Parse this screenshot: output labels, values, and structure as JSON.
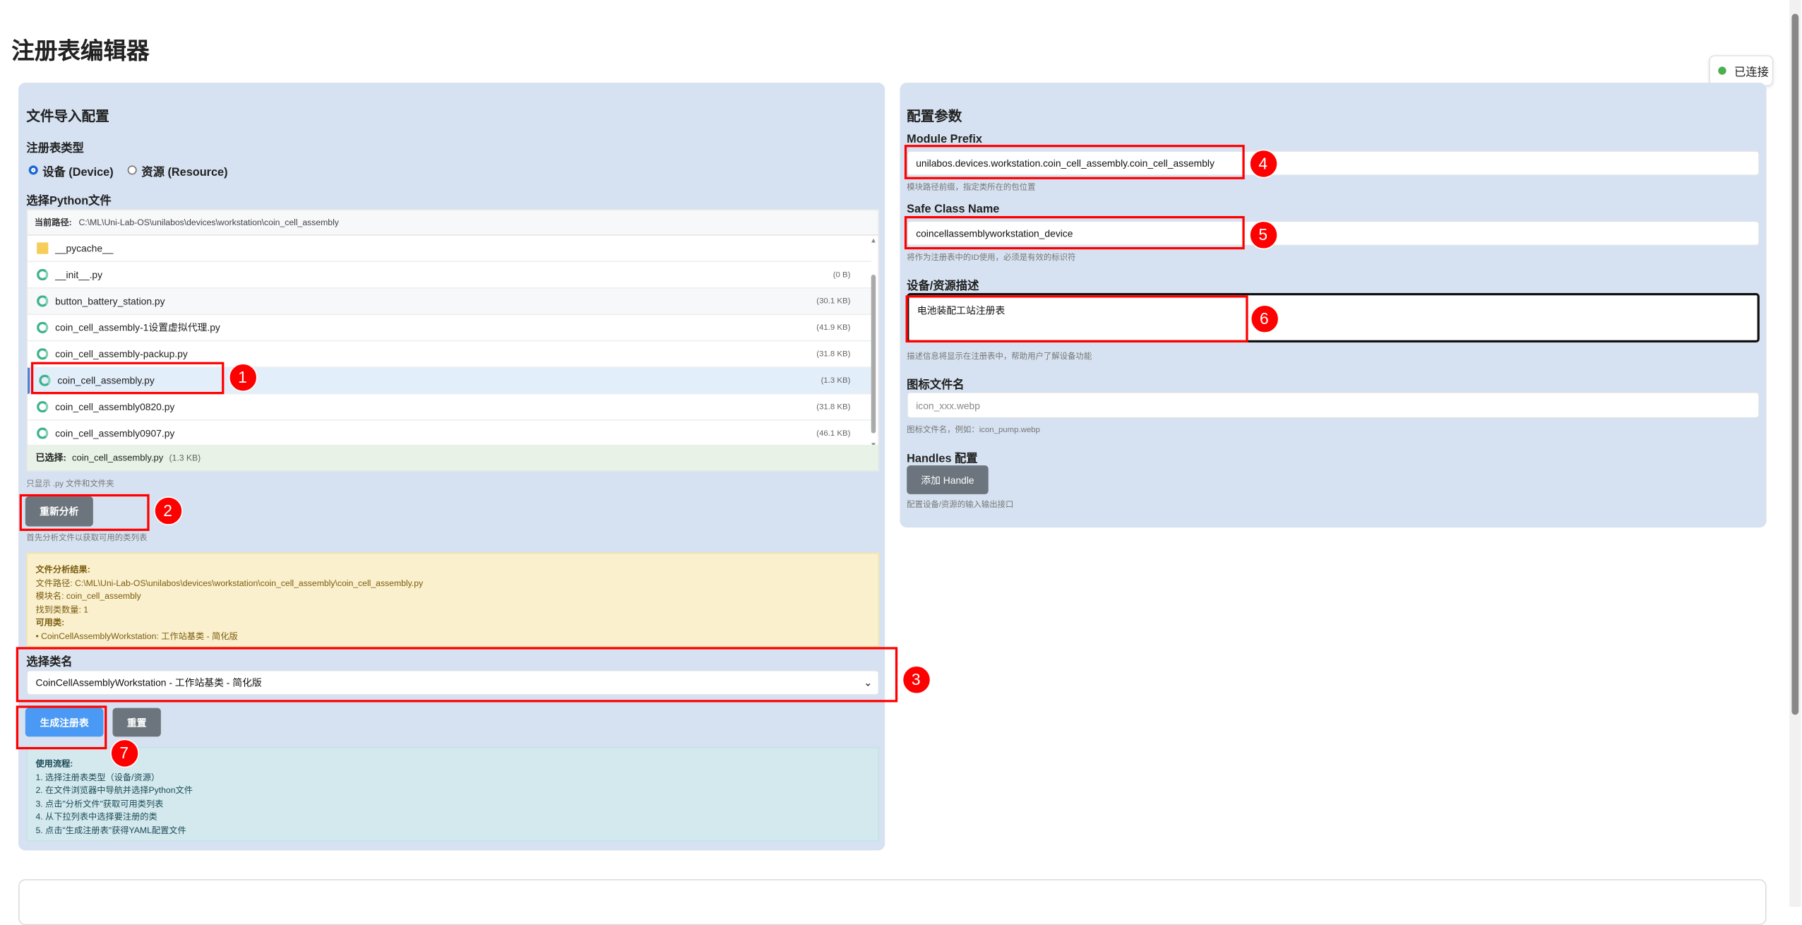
{
  "page": {
    "title": "注册表编辑器",
    "status": "已连接",
    "status_color": "#4caf50"
  },
  "left": {
    "title": "文件导入配置",
    "type_label": "注册表类型",
    "radios": [
      {
        "label": "设备 (Device)",
        "checked": true
      },
      {
        "label": "资源 (Resource)",
        "checked": false
      }
    ],
    "file_label": "选择Python文件",
    "path_label": "当前路径:",
    "path": "C:\\ML\\Uni-Lab-OS\\unilabos\\devices\\workstation\\coin_cell_assembly",
    "files": [
      {
        "name": "__pycache__",
        "size": "",
        "icon": "folder-icon"
      },
      {
        "name": "__init__.py",
        "size": "(0 B)",
        "icon": "python-file-icon"
      },
      {
        "name": "button_battery_station.py",
        "size": "(30.1 KB)",
        "icon": "python-file-icon"
      },
      {
        "name": "coin_cell_assembly-1设置虚拟代理.py",
        "size": "(41.9 KB)",
        "icon": "python-file-icon"
      },
      {
        "name": "coin_cell_assembly-packup.py",
        "size": "(31.8 KB)",
        "icon": "python-file-icon"
      },
      {
        "name": "coin_cell_assembly.py",
        "size": "(1.3 KB)",
        "icon": "python-file-icon",
        "selected": true
      },
      {
        "name": "coin_cell_assembly0820.py",
        "size": "(31.8 KB)",
        "icon": "python-file-icon"
      },
      {
        "name": "coin_cell_assembly0907.py",
        "size": "(46.1 KB)",
        "icon": "python-file-icon"
      }
    ],
    "selected_label": "已选择:",
    "selected_name": "coin_cell_assembly.py",
    "selected_size": "(1.3 KB)",
    "filter_hint": "只显示 .py 文件和文件夹",
    "reanalyze": "重新分析",
    "analyze_hint": "首先分析文件以获取可用的类列表",
    "result": {
      "title": "文件分析结果:",
      "path": "文件路径: C:\\ML\\Uni-Lab-OS\\unilabos\\devices\\workstation\\coin_cell_assembly\\coin_cell_assembly.py",
      "module": "模块名: coin_cell_assembly",
      "count": "找到类数量: 1",
      "classes_title": "可用类:",
      "classes": "• CoinCellAssemblyWorkstation: 工作站基类 - 简化版"
    },
    "class_label": "选择类名",
    "class_value": "CoinCellAssemblyWorkstation - 工作站基类 - 简化版",
    "generate": "生成注册表",
    "reset": "重置",
    "usage": {
      "title": "使用流程:",
      "steps": [
        "1. 选择注册表类型（设备/资源）",
        "2. 在文件浏览器中导航并选择Python文件",
        "3. 点击\"分析文件\"获取可用类列表",
        "4. 从下拉列表中选择要注册的类",
        "5. 点击\"生成注册表\"获得YAML配置文件"
      ]
    }
  },
  "right": {
    "title": "配置参数",
    "module_prefix_label": "Module Prefix",
    "module_prefix": "unilabos.devices.workstation.coin_cell_assembly.coin_cell_assembly",
    "module_prefix_hint": "模块路径前缀，指定类所在的包位置",
    "class_name_label": "Safe Class Name",
    "class_name": "coincellassemblyworkstation_device",
    "class_name_hint": "将作为注册表中的ID使用，必须是有效的标识符",
    "desc_label": "设备/资源描述",
    "desc": "电池装配工站注册表",
    "desc_hint": "描述信息将显示在注册表中，帮助用户了解设备功能",
    "icon_label": "图标文件名",
    "icon_placeholder": "icon_xxx.webp",
    "icon_hint": "图标文件名，例如：icon_pump.webp",
    "handles_label": "Handles 配置",
    "add_handle": "添加 Handle",
    "handles_hint": "配置设备/资源的输入输出接口"
  },
  "annotations": [
    "1",
    "2",
    "3",
    "4",
    "5",
    "6",
    "7"
  ]
}
